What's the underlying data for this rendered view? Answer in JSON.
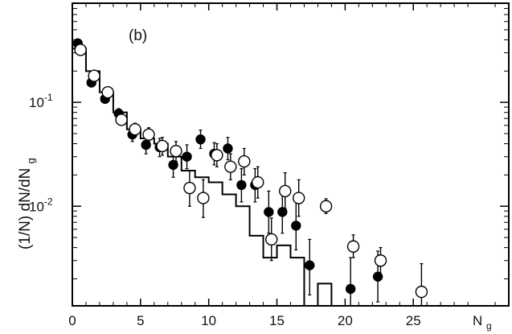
{
  "chart_data": {
    "type": "scatter",
    "panel_label": "(b)",
    "xlabel": {
      "main": "N",
      "sub": "g"
    },
    "ylabel": {
      "main": "(1/N) dN/dN",
      "sub": "g"
    },
    "x_ticks": [
      {
        "value": 0,
        "label": "0"
      },
      {
        "value": 5,
        "label": "5"
      },
      {
        "value": 10,
        "label": "10"
      },
      {
        "value": 15,
        "label": "15"
      },
      {
        "value": 20,
        "label": "20"
      },
      {
        "value": 25,
        "label": "25"
      }
    ],
    "y_ticks": [
      {
        "value": 0.1,
        "base": "10",
        "exp": "-1"
      },
      {
        "value": 0.01,
        "base": "10",
        "exp": "-2"
      }
    ],
    "xlim": [
      0,
      32
    ],
    "ylim": [
      0.0011,
      0.9
    ],
    "yscale": "log",
    "grid": false,
    "histogram": {
      "edges": [
        0,
        1,
        2,
        3,
        4,
        5,
        6,
        7,
        8,
        9,
        10,
        11,
        12,
        13,
        14,
        15,
        16,
        17,
        18,
        19,
        20
      ],
      "values": [
        0.33,
        0.2,
        0.125,
        0.08,
        0.055,
        0.045,
        0.04,
        0.03,
        0.022,
        0.019,
        0.017,
        0.013,
        0.01,
        0.0052,
        0.0032,
        0.0042,
        0.0032,
        0.0011,
        0.0018,
        0.0011
      ]
    },
    "series": [
      {
        "marker": "filled-circle",
        "points": [
          {
            "x": 0.4,
            "y": 0.37,
            "lo": 0.355,
            "hi": 0.385
          },
          {
            "x": 1.4,
            "y": 0.155,
            "lo": 0.148,
            "hi": 0.163
          },
          {
            "x": 2.4,
            "y": 0.108,
            "lo": 0.1,
            "hi": 0.117
          },
          {
            "x": 3.4,
            "y": 0.078,
            "lo": 0.07,
            "hi": 0.087
          },
          {
            "x": 4.4,
            "y": 0.049,
            "lo": 0.042,
            "hi": 0.057
          },
          {
            "x": 5.4,
            "y": 0.039,
            "lo": 0.032,
            "hi": 0.047
          },
          {
            "x": 6.4,
            "y": 0.037,
            "lo": 0.03,
            "hi": 0.045
          },
          {
            "x": 7.4,
            "y": 0.025,
            "lo": 0.019,
            "hi": 0.032
          },
          {
            "x": 8.4,
            "y": 0.03,
            "lo": 0.023,
            "hi": 0.039
          },
          {
            "x": 9.4,
            "y": 0.044,
            "lo": 0.036,
            "hi": 0.054
          },
          {
            "x": 10.4,
            "y": 0.032,
            "lo": 0.025,
            "hi": 0.041
          },
          {
            "x": 11.4,
            "y": 0.036,
            "lo": 0.028,
            "hi": 0.046
          },
          {
            "x": 12.4,
            "y": 0.016,
            "lo": 0.011,
            "hi": 0.023
          },
          {
            "x": 13.4,
            "y": 0.016,
            "lo": 0.011,
            "hi": 0.023
          },
          {
            "x": 14.4,
            "y": 0.0088,
            "lo": 0.0055,
            "hi": 0.014
          },
          {
            "x": 15.4,
            "y": 0.0088,
            "lo": 0.0055,
            "hi": 0.014
          },
          {
            "x": 16.4,
            "y": 0.0065,
            "lo": 0.0038,
            "hi": 0.011
          },
          {
            "x": 17.4,
            "y": 0.0027,
            "lo": 0.0014,
            "hi": 0.0048
          },
          {
            "x": 20.4,
            "y": 0.0016,
            "lo": 0.0011,
            "hi": 0.0032
          },
          {
            "x": 22.4,
            "y": 0.0021,
            "lo": 0.0012,
            "hi": 0.0037
          }
        ]
      },
      {
        "marker": "open-circle",
        "points": [
          {
            "x": 0.6,
            "y": 0.32,
            "lo": 0.305,
            "hi": 0.335
          },
          {
            "x": 1.6,
            "y": 0.18,
            "lo": 0.17,
            "hi": 0.19
          },
          {
            "x": 2.6,
            "y": 0.125,
            "lo": 0.116,
            "hi": 0.134
          },
          {
            "x": 3.6,
            "y": 0.068,
            "lo": 0.061,
            "hi": 0.076
          },
          {
            "x": 4.6,
            "y": 0.055,
            "lo": 0.048,
            "hi": 0.063
          },
          {
            "x": 5.6,
            "y": 0.049,
            "lo": 0.042,
            "hi": 0.057
          },
          {
            "x": 6.6,
            "y": 0.038,
            "lo": 0.031,
            "hi": 0.046
          },
          {
            "x": 7.6,
            "y": 0.034,
            "lo": 0.027,
            "hi": 0.042
          },
          {
            "x": 8.6,
            "y": 0.015,
            "lo": 0.01,
            "hi": 0.022
          },
          {
            "x": 9.6,
            "y": 0.012,
            "lo": 0.0078,
            "hi": 0.018
          },
          {
            "x": 10.6,
            "y": 0.031,
            "lo": 0.024,
            "hi": 0.04
          },
          {
            "x": 11.6,
            "y": 0.024,
            "lo": 0.018,
            "hi": 0.032
          },
          {
            "x": 12.6,
            "y": 0.027,
            "lo": 0.02,
            "hi": 0.036
          },
          {
            "x": 13.6,
            "y": 0.017,
            "lo": 0.012,
            "hi": 0.024
          },
          {
            "x": 14.6,
            "y": 0.0048,
            "lo": 0.003,
            "hi": 0.0077
          },
          {
            "x": 15.6,
            "y": 0.014,
            "lo": 0.0095,
            "hi": 0.021
          },
          {
            "x": 16.6,
            "y": 0.012,
            "lo": 0.008,
            "hi": 0.018
          },
          {
            "x": 18.6,
            "y": 0.01,
            "lo": 0.0085,
            "hi": 0.0118
          },
          {
            "x": 20.6,
            "y": 0.0041,
            "lo": 0.0032,
            "hi": 0.0053
          },
          {
            "x": 22.6,
            "y": 0.003,
            "lo": 0.0022,
            "hi": 0.004
          },
          {
            "x": 25.6,
            "y": 0.0015,
            "lo": 0.0011,
            "hi": 0.0028
          }
        ]
      }
    ]
  }
}
